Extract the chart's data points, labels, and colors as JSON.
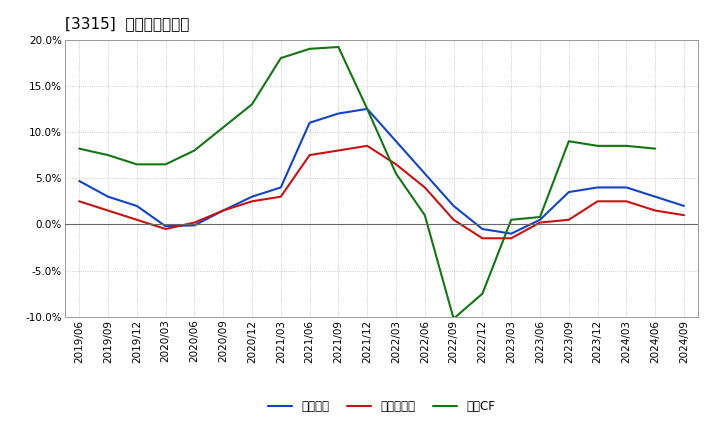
{
  "title": "[3315]  マージンの推移",
  "x_labels": [
    "2019/06",
    "2019/09",
    "2019/12",
    "2020/03",
    "2020/06",
    "2020/09",
    "2020/12",
    "2021/03",
    "2021/06",
    "2021/09",
    "2021/12",
    "2022/03",
    "2022/06",
    "2022/09",
    "2022/12",
    "2023/03",
    "2023/06",
    "2023/09",
    "2023/12",
    "2024/03",
    "2024/06",
    "2024/09"
  ],
  "keijo": [
    4.7,
    3.0,
    2.0,
    -0.2,
    -0.1,
    1.5,
    3.0,
    4.0,
    11.0,
    12.0,
    12.5,
    9.0,
    5.5,
    2.0,
    -0.5,
    -1.0,
    0.5,
    3.5,
    4.0,
    4.0,
    3.0,
    2.0
  ],
  "touki": [
    2.5,
    1.5,
    0.5,
    -0.5,
    0.2,
    1.5,
    2.5,
    3.0,
    7.5,
    8.0,
    8.5,
    6.5,
    4.0,
    0.5,
    -1.5,
    -1.5,
    0.2,
    0.5,
    2.5,
    2.5,
    1.5,
    1.0
  ],
  "eigyo": [
    8.2,
    7.5,
    6.5,
    6.5,
    8.0,
    10.5,
    13.0,
    18.0,
    19.0,
    19.2,
    12.5,
    5.5,
    1.0,
    -10.2,
    -7.5,
    0.5,
    0.8,
    9.0,
    8.5,
    8.5,
    8.2,
    null
  ],
  "keijo_label": "経常利益",
  "touki_label": "当期純利益",
  "eigyo_label": "営業CF",
  "ylim": [
    -10,
    20
  ],
  "yticks": [
    -10,
    -5,
    0,
    5,
    10,
    15,
    20
  ],
  "keijo_color": "#1144cc",
  "touki_color": "#cc1111",
  "eigyo_color": "#117711",
  "bg_color": "#ffffff",
  "grid_color": "#bbbbbb",
  "title_fontsize": 11,
  "tick_fontsize": 7.5,
  "legend_fontsize": 8.5
}
